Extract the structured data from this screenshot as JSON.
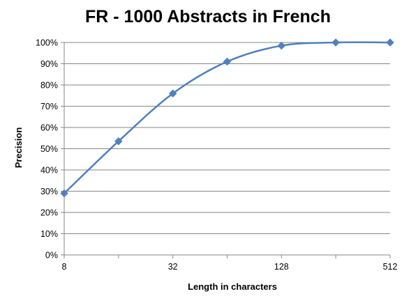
{
  "chart_data": {
    "type": "line",
    "title": "FR - 1000 Abstracts in French",
    "xlabel": "Length in characters",
    "ylabel": "Precision",
    "x_scale": "log2",
    "x_ticks": [
      8,
      32,
      128,
      512
    ],
    "x_tick_labels": [
      "8",
      "32",
      "128",
      "512"
    ],
    "y_ticks": [
      0,
      10,
      20,
      30,
      40,
      50,
      60,
      70,
      80,
      90,
      100
    ],
    "y_tick_labels": [
      "0%",
      "10%",
      "20%",
      "30%",
      "40%",
      "50%",
      "60%",
      "70%",
      "80%",
      "90%",
      "100%"
    ],
    "ylim": [
      0,
      100
    ],
    "xlim": [
      8,
      512
    ],
    "grid": true,
    "legend": "none",
    "series": [
      {
        "color": "#4f81bd",
        "marker": "diamond",
        "x": [
          8,
          16,
          32,
          64,
          128,
          256,
          512
        ],
        "y": [
          29,
          53.5,
          76,
          91,
          98.5,
          100,
          100
        ]
      }
    ]
  }
}
